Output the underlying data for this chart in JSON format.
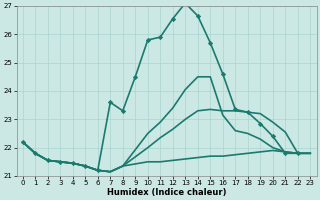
{
  "xlabel": "Humidex (Indice chaleur)",
  "background_color": "#cce8e4",
  "grid_color": "#aad4d0",
  "line_color": "#1a7a6e",
  "xlim": [
    -0.5,
    23.5
  ],
  "ylim": [
    21,
    27
  ],
  "yticks": [
    21,
    22,
    23,
    24,
    25,
    26,
    27
  ],
  "xticks": [
    0,
    1,
    2,
    3,
    4,
    5,
    6,
    7,
    8,
    9,
    10,
    11,
    12,
    13,
    14,
    15,
    16,
    17,
    18,
    19,
    20,
    21,
    22,
    23
  ],
  "series": [
    {
      "x": [
        0,
        1,
        2,
        3,
        4,
        5,
        6,
        7,
        8,
        10,
        11,
        12,
        13,
        14,
        15,
        16,
        17,
        18,
        19,
        20,
        21,
        22,
        23
      ],
      "y": [
        22.2,
        21.8,
        21.55,
        21.5,
        21.45,
        21.35,
        21.2,
        21.15,
        21.35,
        21.5,
        21.5,
        21.55,
        21.6,
        21.65,
        21.7,
        21.7,
        21.75,
        21.8,
        21.85,
        21.9,
        21.85,
        21.8,
        21.8
      ],
      "marker": null,
      "linewidth": 1.2
    },
    {
      "x": [
        0,
        1,
        2,
        3,
        4,
        5,
        6,
        7,
        8,
        10,
        11,
        12,
        13,
        14,
        15,
        16,
        17,
        18,
        19,
        20,
        21,
        22,
        23
      ],
      "y": [
        22.2,
        21.8,
        21.55,
        21.5,
        21.45,
        21.35,
        21.2,
        21.15,
        21.35,
        22.0,
        22.35,
        22.65,
        23.0,
        23.3,
        23.35,
        23.3,
        23.3,
        23.25,
        23.2,
        22.9,
        22.55,
        21.8,
        21.8
      ],
      "marker": null,
      "linewidth": 1.2
    },
    {
      "x": [
        0,
        1,
        2,
        3,
        4,
        5,
        6,
        7,
        8,
        10,
        11,
        12,
        13,
        14,
        15,
        16,
        17,
        18,
        19,
        20,
        21,
        22,
        23
      ],
      "y": [
        22.2,
        21.8,
        21.55,
        21.5,
        21.45,
        21.35,
        21.2,
        21.15,
        21.35,
        22.5,
        22.9,
        23.4,
        24.05,
        24.5,
        24.5,
        23.15,
        22.6,
        22.5,
        22.3,
        22.0,
        21.85,
        21.8,
        21.8
      ],
      "marker": null,
      "linewidth": 1.2
    },
    {
      "x": [
        0,
        1,
        2,
        3,
        4,
        5,
        6,
        7,
        8,
        9,
        10,
        11,
        12,
        13,
        14,
        15,
        16,
        17,
        18,
        19,
        20,
        21,
        22,
        23
      ],
      "y": [
        22.2,
        21.8,
        21.55,
        21.5,
        21.45,
        21.35,
        21.2,
        23.6,
        23.3,
        24.5,
        25.8,
        25.9,
        26.55,
        27.1,
        26.65,
        25.7,
        24.6,
        23.35,
        23.25,
        22.85,
        22.4,
        21.8,
        21.8,
        null
      ],
      "marker": "D",
      "linewidth": 1.2
    }
  ]
}
